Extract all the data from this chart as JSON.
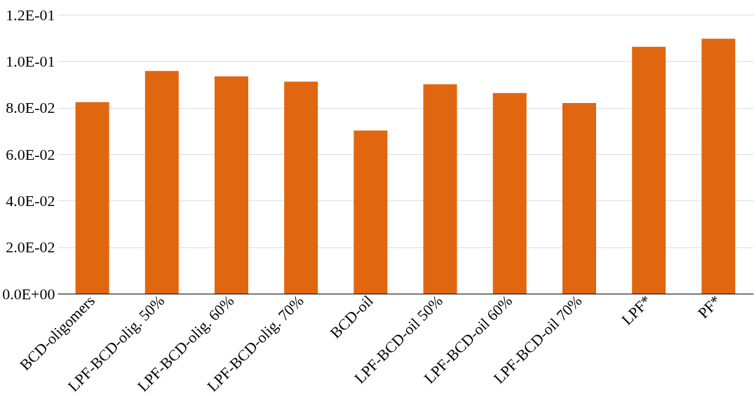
{
  "chart_data": {
    "type": "bar",
    "categories": [
      "BCD-oligomers",
      "LPF-BCD-olig. 50%",
      "LPF-BCD-olig. 60%",
      "LPF-BCD-olig. 70%",
      "BCD-oil",
      "LPF-BCD-oil 50%",
      "LPF-BCD-oil 60%",
      "LPF-BCD-oil 70%",
      "LPF*",
      "PF*"
    ],
    "values": [
      0.0824,
      0.0958,
      0.0935,
      0.0912,
      0.0702,
      0.0901,
      0.0863,
      0.082,
      0.1062,
      0.1097
    ],
    "color": "#e0660f",
    "ylim": [
      0,
      0.12
    ],
    "yticks": [
      {
        "value": 0,
        "label": "0.0E+00"
      },
      {
        "value": 0.02,
        "label": "2.0E-02"
      },
      {
        "value": 0.04,
        "label": "4.0E-02"
      },
      {
        "value": 0.06,
        "label": "6.0E-02"
      },
      {
        "value": 0.08,
        "label": "8.0E-02"
      },
      {
        "value": 0.1,
        "label": "1.0E-01"
      },
      {
        "value": 0.12,
        "label": "1.2E-01"
      }
    ],
    "grid": "y"
  }
}
